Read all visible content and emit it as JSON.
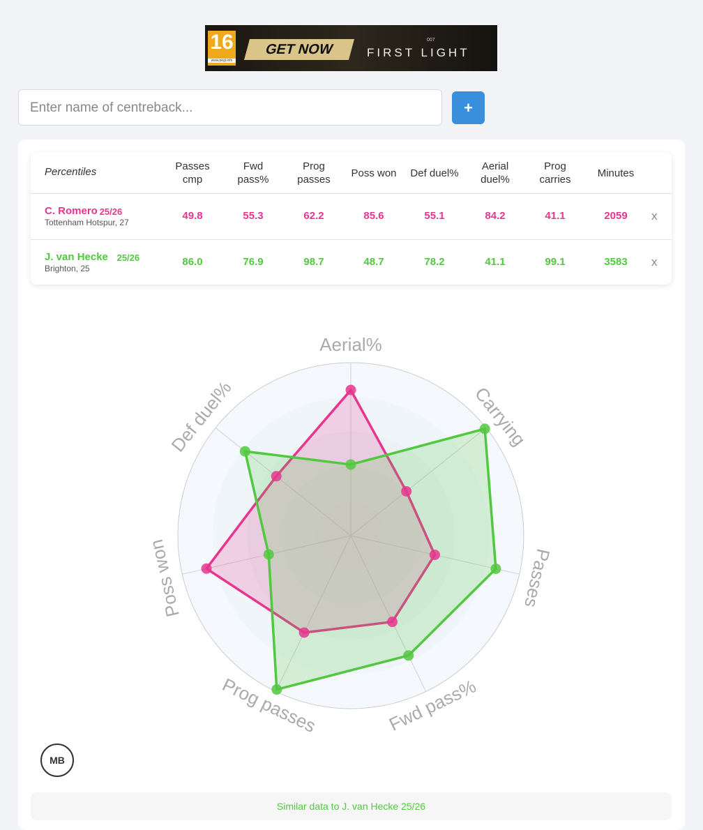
{
  "ad": {
    "age_rating": "16",
    "rating_site": "www.pegi.info",
    "cta": "GET NOW",
    "brand": "007",
    "product": "FIRST LIGHT"
  },
  "search": {
    "placeholder": "Enter name of centreback...",
    "button": "+"
  },
  "table": {
    "corner": "Percentiles",
    "columns": [
      "Passes cmp",
      "Fwd pass%",
      "Prog passes",
      "Poss won",
      "Def duel%",
      "Aerial duel%",
      "Prog carries",
      "Minutes"
    ],
    "rows": [
      {
        "name": "C. Romero",
        "season": "25/26",
        "info": "Tottenham Hotspur, 27",
        "color": "#e8368f",
        "cells": [
          "49.8",
          "55.3",
          "62.2",
          "85.6",
          "55.1",
          "84.2",
          "41.1",
          "2059"
        ],
        "remove": "x"
      },
      {
        "name": "J. van Hecke",
        "season": "25/26",
        "info": "Brighton, 25",
        "color": "#52c841",
        "cells": [
          "86.0",
          "76.9",
          "98.7",
          "48.7",
          "78.2",
          "41.1",
          "99.1",
          "3583"
        ],
        "remove": "x"
      }
    ]
  },
  "chart_data": {
    "type": "radar",
    "axes": [
      "Aerial%",
      "Carrying",
      "Passes",
      "Fwd pass%",
      "Prog passes",
      "Poss won",
      "Def duel%"
    ],
    "rlim": [
      0,
      100
    ],
    "rticks": [
      20,
      40,
      60,
      80,
      100
    ],
    "series": [
      {
        "name": "C. Romero",
        "color": "#e8368f",
        "values": [
          84.2,
          41.1,
          49.8,
          55.3,
          62.2,
          85.6,
          55.1
        ]
      },
      {
        "name": "J. van Hecke",
        "color": "#52c841",
        "values": [
          41.1,
          99.1,
          86.0,
          76.9,
          98.7,
          48.7,
          78.2
        ]
      }
    ]
  },
  "logo": "MB",
  "footer": {
    "similar": "Similar data to J. van Hecke 25/26"
  }
}
